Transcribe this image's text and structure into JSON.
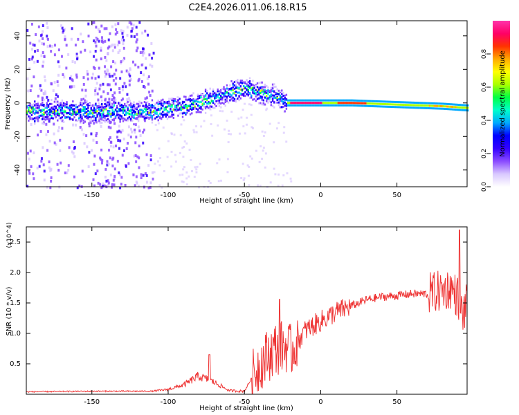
{
  "title": "C2E4.2026.011.06.18.R15",
  "chart_data": [
    {
      "type": "heatmap",
      "xlabel": "Height of straight line (km)",
      "ylabel": "Frequency (Hz)",
      "xlim": [
        -193,
        96
      ],
      "ylim": [
        -50,
        49
      ],
      "x_ticks": [
        -150,
        -100,
        -50,
        0,
        50
      ],
      "y_ticks": [
        -40,
        -20,
        0,
        20,
        40
      ],
      "colorbar": {
        "label": "Normalized spectral amplitude",
        "range": [
          0.0,
          1.0
        ],
        "ticks": [
          0.0,
          0.2,
          0.4,
          0.6,
          0.8
        ],
        "colors": [
          "#ffffff",
          "#d9c8ff",
          "#8a4bff",
          "#3300ff",
          "#0000ff",
          "#00aaff",
          "#00ffcc",
          "#00ff44",
          "#aaff00",
          "#ffff00",
          "#ffaa00",
          "#ff3300",
          "#ff0066",
          "#ff33aa"
        ]
      },
      "ridge": {
        "x": [
          -193,
          -160,
          -130,
          -110,
          -100,
          -90,
          -80,
          -70,
          -60,
          -50,
          -40,
          -30,
          -22,
          -10,
          0,
          20,
          50,
          80,
          96
        ],
        "y": [
          -5,
          -5,
          -5,
          -5,
          -3,
          -2,
          0,
          3,
          6,
          9,
          6,
          4,
          0,
          0,
          0,
          0,
          -1,
          -2,
          -3
        ],
        "peak_x_range": [
          -20,
          0
        ],
        "peak_amplitude": 0.95
      },
      "noise_x_range": [
        -193,
        -110
      ]
    },
    {
      "type": "line",
      "xlabel": "Height of straight line (km)",
      "ylabel": "SNR (10 * v/v)",
      "y_multiplier": "(x10^4)",
      "xlim": [
        -193,
        96
      ],
      "ylim": [
        0,
        2.75
      ],
      "x_ticks": [
        -150,
        -100,
        -50,
        0,
        50
      ],
      "y_ticks": [
        0.5,
        1.0,
        1.5,
        2.0,
        2.5
      ],
      "color": "#ee3333",
      "series": [
        {
          "x": [
            -193,
            -150,
            -110,
            -100,
            -90,
            -80,
            -70,
            -60,
            -50,
            -40,
            -30,
            -22,
            -20,
            -10,
            0,
            10,
            20,
            30,
            40,
            50,
            60,
            70,
            80,
            85,
            90,
            93,
            96
          ],
          "values": [
            0.04,
            0.05,
            0.05,
            0.08,
            0.15,
            0.3,
            0.2,
            0.06,
            0.05,
            0.5,
            0.75,
            0.8,
            0.7,
            1.05,
            1.2,
            1.35,
            1.45,
            1.55,
            1.6,
            1.62,
            1.65,
            1.65,
            1.7,
            1.75,
            1.6,
            1.3,
            1.5
          ],
          "peaks": [
            {
              "x": 91,
              "y": 2.7
            },
            {
              "x": -27,
              "y": 1.56
            },
            {
              "x": -73,
              "y": 0.65
            }
          ]
        }
      ]
    }
  ]
}
